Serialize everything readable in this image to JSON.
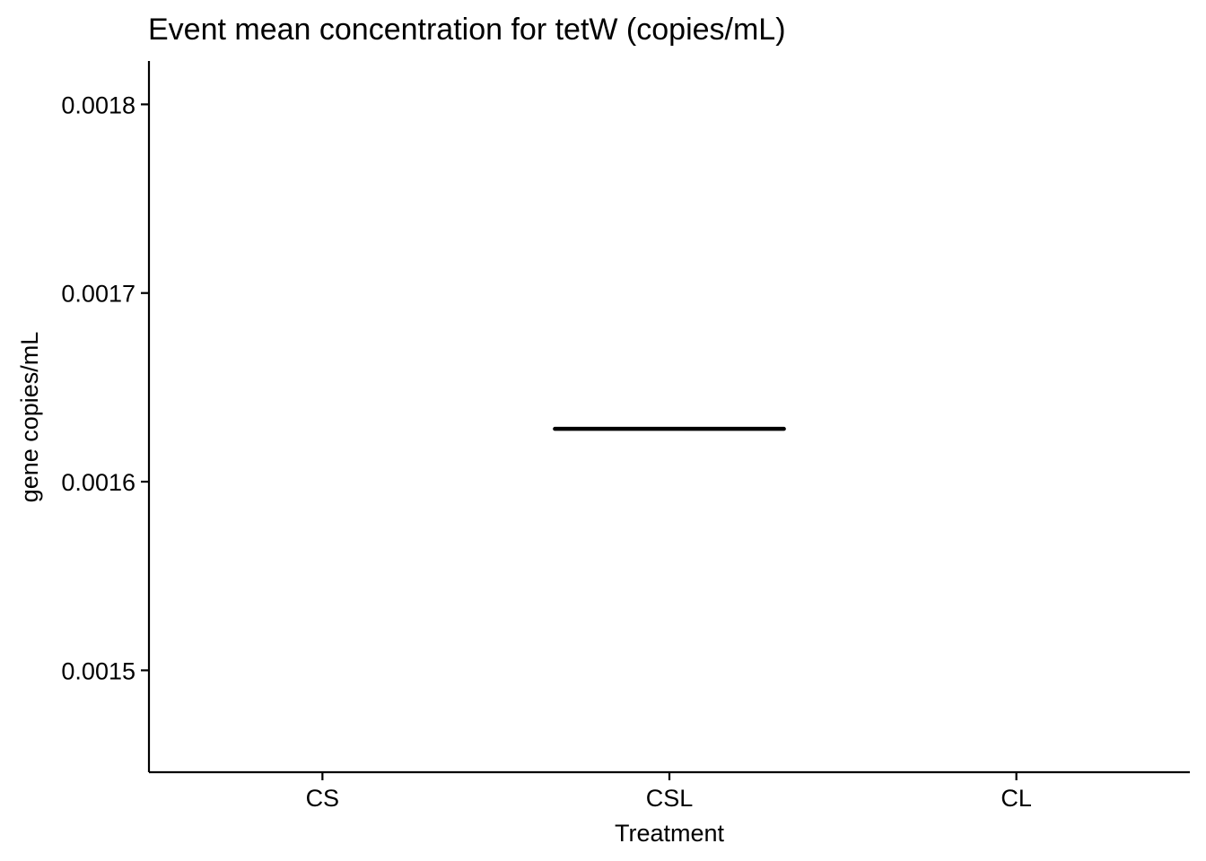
{
  "chart_data": {
    "type": "boxplot",
    "title": "Event mean concentration for tetW (copies/mL)",
    "xlabel": "Treatment",
    "ylabel": "gene copies/mL",
    "categories": [
      "CS",
      "CSL",
      "CL"
    ],
    "yticks": [
      "0.0015",
      "0.0016",
      "0.0017",
      "0.0018"
    ],
    "ylim": [
      0.001446,
      0.001823
    ],
    "grid": false,
    "legend": "none",
    "series": [
      {
        "category": "CSL",
        "median": 0.001628,
        "q1": 0.001628,
        "q3": 0.001628,
        "min": 0.001628,
        "max": 0.001628
      }
    ],
    "colors": {
      "axis": "#000000",
      "box": "#000000"
    }
  }
}
